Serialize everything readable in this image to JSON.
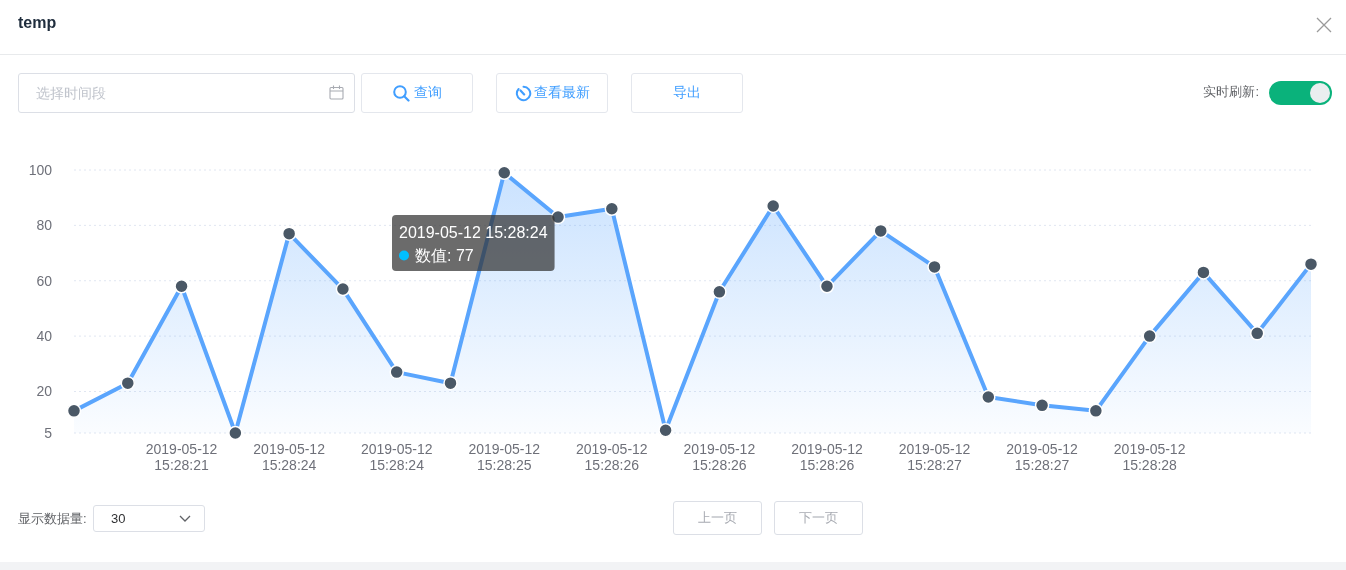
{
  "chart_data": {
    "type": "area",
    "title": "temp",
    "categories": [
      null,
      null,
      "2019-05-12 15:28:21",
      null,
      "2019-05-12 15:28:24",
      null,
      "2019-05-12 15:28:24",
      null,
      "2019-05-12 15:28:25",
      null,
      "2019-05-12 15:28:26",
      null,
      "2019-05-12 15:28:26",
      null,
      "2019-05-12 15:28:26",
      null,
      "2019-05-12 15:28:27",
      null,
      "2019-05-12 15:28:27",
      null,
      "2019-05-12 15:28:28",
      null,
      null,
      null
    ],
    "series": [
      {
        "color": "#5aa5fd",
        "values": [
          13,
          23,
          58,
          5,
          77,
          57,
          27,
          23,
          99,
          83,
          86,
          6,
          56,
          87,
          58,
          78,
          65,
          18,
          15,
          13,
          40,
          63,
          41,
          66
        ]
      }
    ],
    "ylim": [
      5,
      100
    ],
    "yticks": [
      5,
      20,
      40,
      60,
      80,
      100
    ],
    "grid": "y",
    "marker": "circle",
    "annotations": [
      "选择时间段",
      "查询",
      "查看最新",
      "导出",
      "实时刷新:",
      "显示数据量:",
      "30",
      "上一页",
      "下一页",
      "2019-05-12 15:28:24\n数值: 77"
    ]
  }
}
